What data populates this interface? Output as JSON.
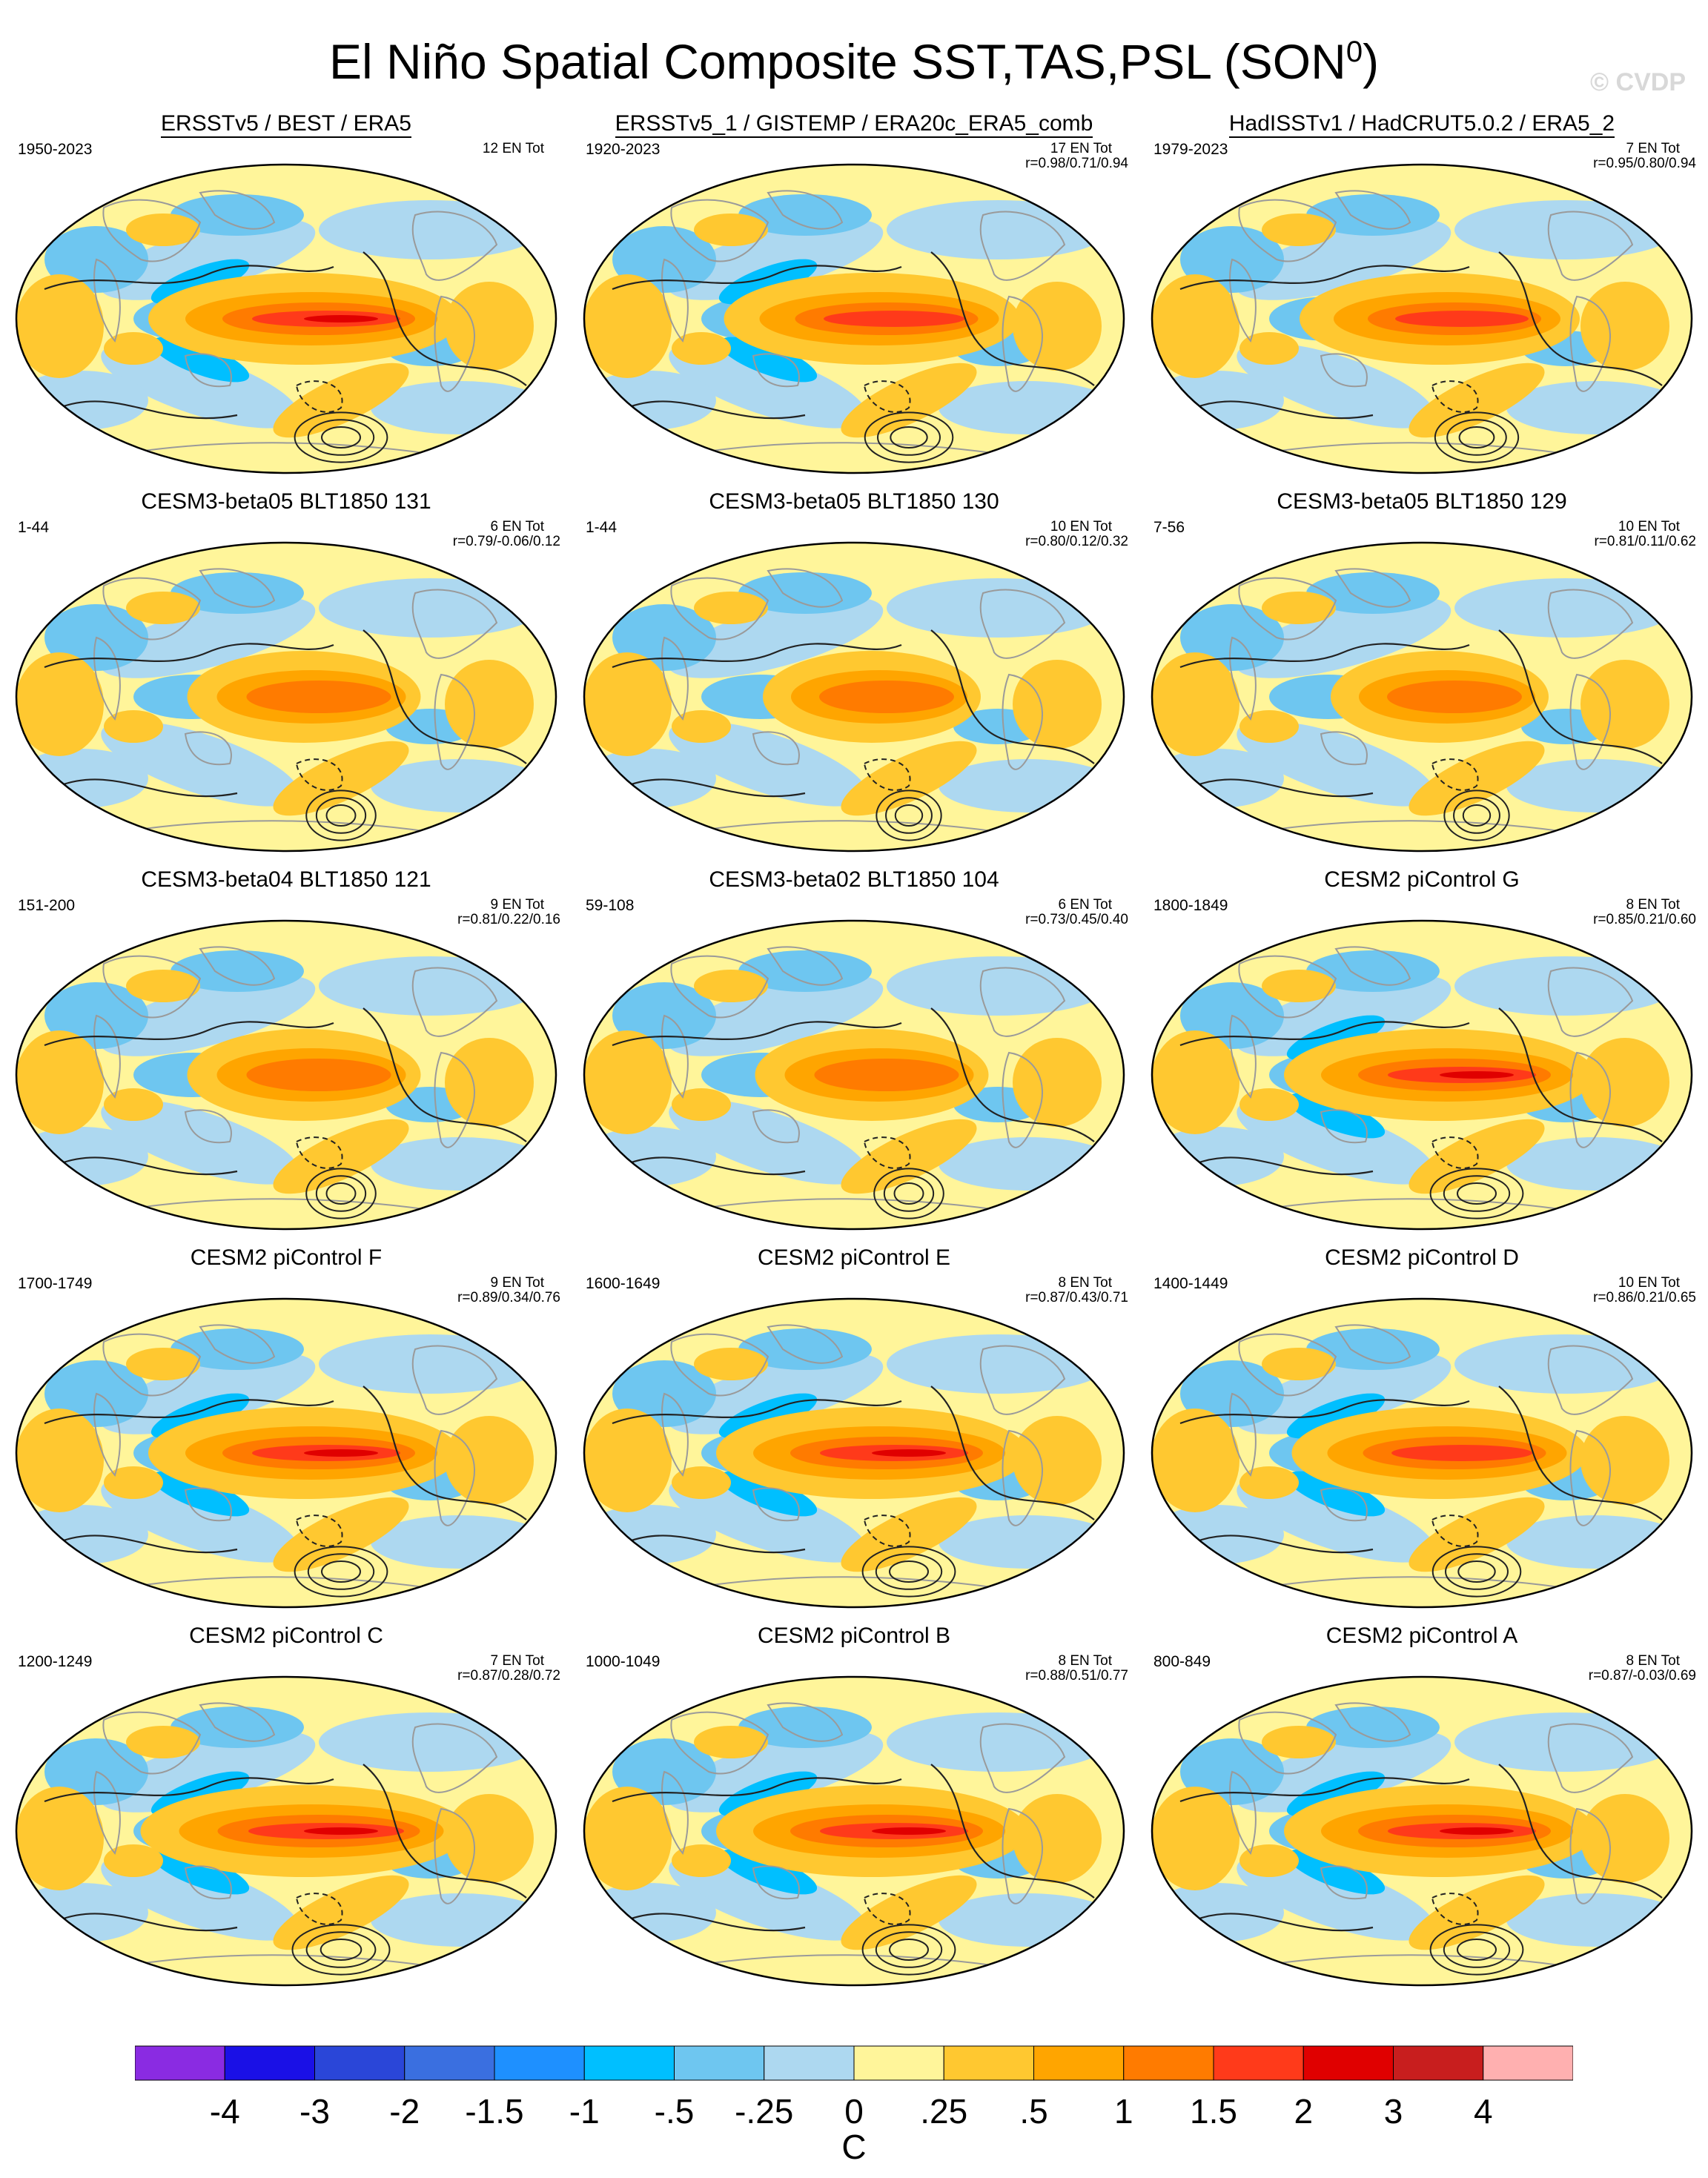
{
  "title": "El Niño Spatial Composite SST,TAS,PSL (SON",
  "title_sup": "0",
  "title_close": ")",
  "watermark": "© CVDP",
  "panels": [
    {
      "title": "ERSSTv5 / BEST / ERA5",
      "period": "1950-2023",
      "count": "12 EN Tot",
      "corr": "",
      "underline": true,
      "strength": 1.0
    },
    {
      "title": "ERSSTv5_1 / GISTEMP / ERA20c_ERA5_comb",
      "period": "1920-2023",
      "count": "17 EN Tot",
      "corr": "r=0.98/0.71/0.94",
      "underline": true,
      "strength": 0.95
    },
    {
      "title": "HadISSTv1 / HadCRUT5.0.2 / ERA5_2",
      "period": "1979-2023",
      "count": "7 EN Tot",
      "corr": "r=0.95/0.80/0.94",
      "underline": true,
      "strength": 0.9
    },
    {
      "title": "CESM3-beta05 BLT1850 131",
      "period": "1-44",
      "count": "6 EN Tot",
      "corr": "r=0.79/-0.06/0.12",
      "underline": false,
      "strength": 0.75
    },
    {
      "title": "CESM3-beta05 BLT1850 130",
      "period": "1-44",
      "count": "10 EN Tot",
      "corr": "r=0.80/0.12/0.32",
      "underline": false,
      "strength": 0.7
    },
    {
      "title": "CESM3-beta05 BLT1850 129",
      "period": "7-56",
      "count": "10 EN Tot",
      "corr": "r=0.81/0.11/0.62",
      "underline": false,
      "strength": 0.7
    },
    {
      "title": "CESM3-beta04 BLT1850 121",
      "period": "151-200",
      "count": "9 EN Tot",
      "corr": "r=0.81/0.22/0.16",
      "underline": false,
      "strength": 0.75
    },
    {
      "title": "CESM3-beta02 BLT1850 104",
      "period": "59-108",
      "count": "6 EN Tot",
      "corr": "r=0.73/0.45/0.40",
      "underline": false,
      "strength": 0.75
    },
    {
      "title": "CESM2 piControl G",
      "period": "1800-1849",
      "count": "8 EN Tot",
      "corr": "r=0.85/0.21/0.60",
      "underline": false,
      "strength": 1.0
    },
    {
      "title": "CESM2 piControl F",
      "period": "1700-1749",
      "count": "9 EN Tot",
      "corr": "r=0.89/0.34/0.76",
      "underline": false,
      "strength": 1.0
    },
    {
      "title": "CESM2 piControl E",
      "period": "1600-1649",
      "count": "8 EN Tot",
      "corr": "r=0.87/0.43/0.71",
      "underline": false,
      "strength": 1.0
    },
    {
      "title": "CESM2 piControl D",
      "period": "1400-1449",
      "count": "10 EN Tot",
      "corr": "r=0.86/0.21/0.65",
      "underline": false,
      "strength": 0.95
    },
    {
      "title": "CESM2 piControl C",
      "period": "1200-1249",
      "count": "7 EN Tot",
      "corr": "r=0.87/0.28/0.72",
      "underline": false,
      "strength": 1.05
    },
    {
      "title": "CESM2 piControl B",
      "period": "1000-1049",
      "count": "8 EN Tot",
      "corr": "r=0.88/0.51/0.77",
      "underline": false,
      "strength": 1.0
    },
    {
      "title": "CESM2 piControl A",
      "period": "800-849",
      "count": "8 EN Tot",
      "corr": "r=0.87/-0.03/0.69",
      "underline": false,
      "strength": 1.0
    }
  ],
  "colorbar": {
    "colors": [
      "#8a2be2",
      "#1a10e6",
      "#2a46d8",
      "#3a6fe0",
      "#1e90ff",
      "#00bfff",
      "#6ec6f0",
      "#add8f0",
      "#fff59a",
      "#ffc830",
      "#ffa500",
      "#ff7b00",
      "#ff3a1a",
      "#e00000",
      "#c81e1e",
      "#ffb0b0"
    ],
    "labels": [
      "-4",
      "-3",
      "-2",
      "-1.5",
      "-1",
      "-.5",
      "-.25",
      "0",
      ".25",
      ".5",
      "1",
      "1.5",
      "2",
      "3",
      "4"
    ],
    "unit": "C"
  }
}
